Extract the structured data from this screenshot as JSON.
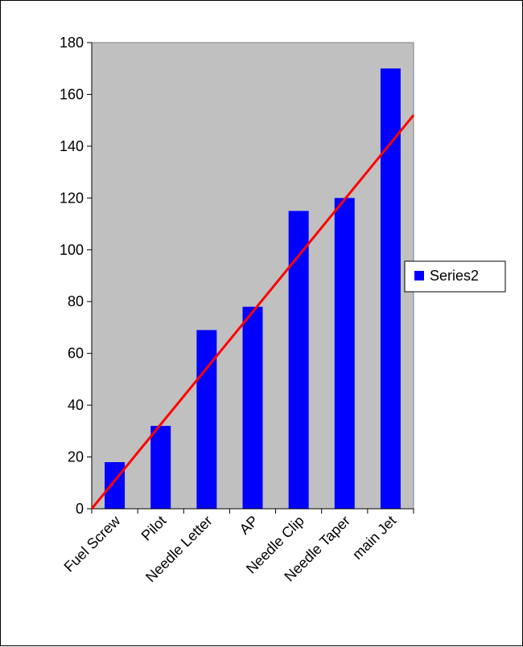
{
  "chart_data": {
    "type": "bar",
    "categories": [
      "Fuel Screw",
      "Pilot",
      "Needle Letter",
      "AP",
      "Needle Clip",
      "Needle Taper",
      "main Jet"
    ],
    "series": [
      {
        "name": "Series2",
        "values": [
          18,
          32,
          69,
          78,
          115,
          120,
          170
        ],
        "color": "#0000ff"
      }
    ],
    "trendline": {
      "type": "linear",
      "color": "#ff0000",
      "from": [
        0,
        0
      ],
      "to": [
        7,
        152
      ]
    },
    "ylim": [
      0,
      180
    ],
    "yticks": [
      0,
      20,
      40,
      60,
      80,
      100,
      120,
      140,
      160,
      180
    ],
    "plot_background": "#c0c0c0",
    "grid": false,
    "legend": {
      "position": "right",
      "entries": [
        "Series2"
      ]
    },
    "title": "",
    "xlabel": "",
    "ylabel": ""
  }
}
